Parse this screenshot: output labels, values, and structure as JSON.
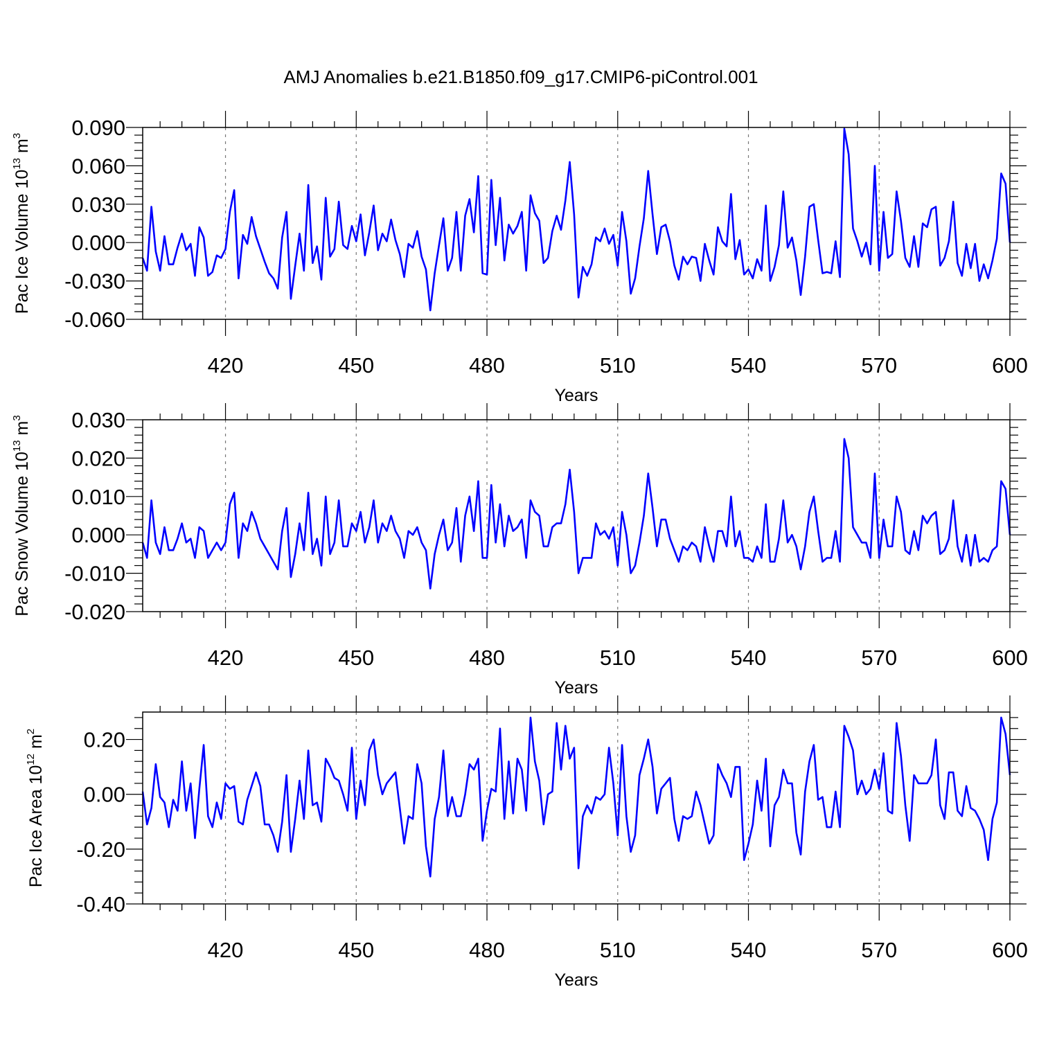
{
  "figure": {
    "title": "AMJ Anomalies b.e21.B1850.f09_g17.CMIP6-piControl.001"
  },
  "chart_data": [
    {
      "type": "line",
      "xlabel": "Years",
      "ylabel": {
        "main": "Pac Ice Volume 10",
        "sup": "13",
        "unit": " m",
        "unit_sup": "3"
      },
      "xlim": [
        401,
        600
      ],
      "ylim": [
        -0.06,
        0.09
      ],
      "xticks": [
        420,
        450,
        480,
        510,
        540,
        570,
        600
      ],
      "xtick_labels": [
        "420",
        "450",
        "480",
        "510",
        "540",
        "570",
        "600"
      ],
      "yticks": [
        -0.06,
        -0.03,
        0.0,
        0.03,
        0.06,
        0.09
      ],
      "ytick_labels": [
        "-0.060",
        "-0.030",
        "0.000",
        "0.030",
        "0.060",
        "0.090"
      ],
      "grid": "vertical dashed at major x ticks",
      "color": "#0000ff",
      "x_start": 401,
      "values": [
        -0.012,
        -0.022,
        0.028,
        -0.007,
        -0.022,
        0.005,
        -0.017,
        -0.017,
        -0.004,
        0.007,
        -0.006,
        -0.001,
        -0.026,
        0.012,
        0.004,
        -0.026,
        -0.023,
        -0.01,
        -0.012,
        -0.005,
        0.024,
        0.041,
        -0.028,
        0.006,
        -0.001,
        0.02,
        0.005,
        -0.005,
        -0.015,
        -0.024,
        -0.028,
        -0.036,
        0.004,
        0.024,
        -0.044,
        -0.018,
        0.007,
        -0.022,
        0.045,
        -0.016,
        -0.003,
        -0.029,
        0.035,
        -0.011,
        -0.005,
        0.032,
        -0.002,
        -0.005,
        0.013,
        0.001,
        0.022,
        -0.01,
        0.008,
        0.029,
        -0.006,
        0.007,
        0.001,
        0.018,
        0.002,
        -0.009,
        -0.027,
        -0.001,
        -0.004,
        0.009,
        -0.011,
        -0.021,
        -0.053,
        -0.024,
        -0.002,
        0.019,
        -0.022,
        -0.012,
        0.024,
        -0.022,
        0.021,
        0.034,
        0.008,
        0.052,
        -0.024,
        -0.025,
        0.049,
        -0.002,
        0.035,
        -0.014,
        0.014,
        0.007,
        0.013,
        0.024,
        -0.022,
        0.037,
        0.023,
        0.017,
        -0.016,
        -0.012,
        0.009,
        0.021,
        0.01,
        0.033,
        0.063,
        0.022,
        -0.043,
        -0.019,
        -0.026,
        -0.017,
        0.004,
        0.001,
        0.011,
        -0.001,
        0.006,
        -0.018,
        0.024,
        0.001,
        -0.04,
        -0.028,
        -0.003,
        0.019,
        0.056,
        0.022,
        -0.009,
        0.012,
        0.014,
        0.001,
        -0.018,
        -0.029,
        -0.011,
        -0.017,
        -0.011,
        -0.012,
        -0.03,
        -0.001,
        -0.014,
        -0.025,
        0.012,
        0.001,
        -0.003,
        0.038,
        -0.013,
        0.002,
        -0.025,
        -0.021,
        -0.028,
        -0.013,
        -0.022,
        0.029,
        -0.03,
        -0.019,
        -0.002,
        0.04,
        -0.004,
        0.004,
        -0.014,
        -0.041,
        -0.011,
        0.028,
        0.03,
        0.002,
        -0.024,
        -0.023,
        -0.024,
        0.001,
        -0.027,
        0.089,
        0.069,
        0.011,
        0.001,
        -0.011,
        0.0,
        -0.017,
        0.06,
        -0.022,
        0.024,
        -0.012,
        -0.009,
        0.04,
        0.017,
        -0.012,
        -0.019,
        0.005,
        -0.019,
        0.015,
        0.012,
        0.026,
        0.028,
        -0.018,
        -0.012,
        0.001,
        0.032,
        -0.016,
        -0.026,
        -0.001,
        -0.02,
        -0.001,
        -0.03,
        -0.017,
        -0.028,
        -0.014,
        0.003,
        0.054,
        0.046,
        0.0
      ]
    },
    {
      "type": "line",
      "xlabel": "Years",
      "ylabel": {
        "main": "Pac Snow Volume 10",
        "sup": "13",
        "unit": " m",
        "unit_sup": "3"
      },
      "xlim": [
        401,
        600
      ],
      "ylim": [
        -0.02,
        0.03
      ],
      "xticks": [
        420,
        450,
        480,
        510,
        540,
        570,
        600
      ],
      "xtick_labels": [
        "420",
        "450",
        "480",
        "510",
        "540",
        "570",
        "600"
      ],
      "yticks": [
        -0.02,
        -0.01,
        0.0,
        0.01,
        0.02,
        0.03
      ],
      "ytick_labels": [
        "-0.020",
        "-0.010",
        "0.000",
        "0.010",
        "0.020",
        "0.030"
      ],
      "grid": "vertical dashed at major x ticks",
      "color": "#0000ff",
      "x_start": 401,
      "values": [
        -0.002,
        -0.006,
        0.009,
        -0.002,
        -0.005,
        0.002,
        -0.004,
        -0.004,
        -0.001,
        0.003,
        -0.002,
        -0.001,
        -0.006,
        0.002,
        0.001,
        -0.006,
        -0.004,
        -0.002,
        -0.004,
        -0.002,
        0.008,
        0.011,
        -0.006,
        0.003,
        0.001,
        0.006,
        0.003,
        -0.001,
        -0.003,
        -0.005,
        -0.007,
        -0.009,
        0.001,
        0.007,
        -0.011,
        -0.005,
        0.003,
        -0.004,
        0.011,
        -0.005,
        -0.001,
        -0.008,
        0.01,
        -0.005,
        -0.002,
        0.009,
        -0.003,
        -0.003,
        0.003,
        0.001,
        0.006,
        -0.002,
        0.002,
        0.009,
        -0.002,
        0.003,
        0.001,
        0.005,
        0.001,
        -0.001,
        -0.006,
        0.001,
        0.0,
        0.002,
        -0.002,
        -0.004,
        -0.014,
        -0.005,
        0.0,
        0.004,
        -0.004,
        -0.002,
        0.007,
        -0.007,
        0.005,
        0.01,
        0.001,
        0.014,
        -0.006,
        -0.006,
        0.013,
        -0.002,
        0.008,
        -0.003,
        0.005,
        0.001,
        0.002,
        0.004,
        -0.006,
        0.009,
        0.006,
        0.005,
        -0.003,
        -0.003,
        0.002,
        0.003,
        0.003,
        0.008,
        0.017,
        0.006,
        -0.01,
        -0.006,
        -0.006,
        -0.006,
        0.003,
        0.0,
        0.001,
        -0.001,
        0.002,
        -0.008,
        0.006,
        0.0,
        -0.01,
        -0.008,
        -0.002,
        0.005,
        0.016,
        0.007,
        -0.003,
        0.004,
        0.004,
        -0.001,
        -0.004,
        -0.007,
        -0.003,
        -0.004,
        -0.002,
        -0.003,
        -0.007,
        0.002,
        -0.003,
        -0.007,
        0.001,
        0.001,
        -0.003,
        0.01,
        -0.003,
        0.001,
        -0.006,
        -0.006,
        -0.007,
        -0.003,
        -0.006,
        0.008,
        -0.007,
        -0.007,
        -0.001,
        0.009,
        -0.002,
        0.0,
        -0.003,
        -0.009,
        -0.003,
        0.006,
        0.01,
        0.001,
        -0.007,
        -0.006,
        -0.006,
        0.001,
        -0.007,
        0.025,
        0.02,
        0.002,
        0.0,
        -0.002,
        -0.002,
        -0.006,
        0.016,
        -0.006,
        0.004,
        -0.003,
        -0.003,
        0.01,
        0.006,
        -0.004,
        -0.005,
        0.001,
        -0.004,
        0.005,
        0.003,
        0.005,
        0.006,
        -0.005,
        -0.004,
        -0.001,
        0.009,
        -0.003,
        -0.007,
        0.0,
        -0.008,
        0.0,
        -0.007,
        -0.006,
        -0.007,
        -0.004,
        -0.003,
        0.014,
        0.012,
        0.0
      ]
    },
    {
      "type": "line",
      "xlabel": "Years",
      "ylabel": {
        "main": "Pac Ice Area 10",
        "sup": "12",
        "unit": " m",
        "unit_sup": "2"
      },
      "xlim": [
        401,
        600
      ],
      "ylim": [
        -0.4,
        0.3
      ],
      "xticks": [
        420,
        450,
        480,
        510,
        540,
        570,
        600
      ],
      "xtick_labels": [
        "420",
        "450",
        "480",
        "510",
        "540",
        "570",
        "600"
      ],
      "yticks": [
        -0.4,
        -0.2,
        0.0,
        0.2
      ],
      "ytick_labels": [
        "-0.40",
        "-0.20",
        "0.00",
        "0.20"
      ],
      "grid": "vertical dashed at major x ticks",
      "color": "#0000ff",
      "x_start": 401,
      "values": [
        0.01,
        -0.11,
        -0.05,
        0.11,
        -0.01,
        -0.03,
        -0.12,
        -0.02,
        -0.06,
        0.12,
        -0.06,
        0.04,
        -0.16,
        0.02,
        0.18,
        -0.08,
        -0.12,
        -0.03,
        -0.09,
        0.04,
        0.02,
        0.03,
        -0.1,
        -0.11,
        -0.02,
        0.03,
        0.08,
        0.03,
        -0.11,
        -0.11,
        -0.15,
        -0.21,
        -0.1,
        0.07,
        -0.21,
        -0.09,
        0.05,
        -0.09,
        0.16,
        -0.04,
        -0.03,
        -0.1,
        0.13,
        0.1,
        0.06,
        0.05,
        0.0,
        -0.06,
        0.17,
        -0.09,
        0.05,
        -0.04,
        0.16,
        0.2,
        0.07,
        0.0,
        0.04,
        0.06,
        0.08,
        -0.05,
        -0.18,
        -0.08,
        -0.09,
        0.11,
        0.04,
        -0.19,
        -0.3,
        -0.09,
        -0.01,
        0.16,
        -0.08,
        -0.01,
        -0.08,
        -0.08,
        0.0,
        0.11,
        0.09,
        0.13,
        -0.17,
        -0.06,
        0.02,
        0.01,
        0.24,
        -0.09,
        0.12,
        -0.07,
        0.13,
        0.09,
        -0.06,
        0.28,
        0.12,
        0.05,
        -0.11,
        0.0,
        0.01,
        0.26,
        0.09,
        0.25,
        0.13,
        0.17,
        -0.27,
        -0.08,
        -0.04,
        -0.07,
        -0.01,
        -0.02,
        0.0,
        0.17,
        0.04,
        -0.15,
        0.18,
        -0.08,
        -0.21,
        -0.15,
        0.07,
        0.13,
        0.2,
        0.1,
        -0.07,
        0.02,
        0.04,
        0.06,
        -0.09,
        -0.17,
        -0.08,
        -0.09,
        -0.08,
        0.01,
        -0.04,
        -0.11,
        -0.18,
        -0.15,
        0.11,
        0.07,
        0.04,
        -0.01,
        0.1,
        0.1,
        -0.24,
        -0.18,
        -0.11,
        0.05,
        -0.06,
        0.13,
        -0.19,
        -0.04,
        -0.01,
        0.09,
        0.04,
        0.04,
        -0.14,
        -0.22,
        0.01,
        0.12,
        0.18,
        -0.02,
        -0.01,
        -0.12,
        -0.12,
        0.01,
        -0.12,
        0.25,
        0.21,
        0.16,
        0.0,
        0.05,
        0.0,
        0.02,
        0.09,
        0.02,
        0.15,
        -0.06,
        -0.07,
        0.26,
        0.14,
        -0.04,
        -0.17,
        0.07,
        0.04,
        0.04,
        0.04,
        0.07,
        0.2,
        -0.04,
        -0.09,
        0.08,
        0.08,
        -0.06,
        -0.08,
        0.03,
        -0.05,
        -0.06,
        -0.09,
        -0.13,
        -0.24,
        -0.09,
        -0.03,
        0.28,
        0.22,
        0.07
      ]
    }
  ]
}
